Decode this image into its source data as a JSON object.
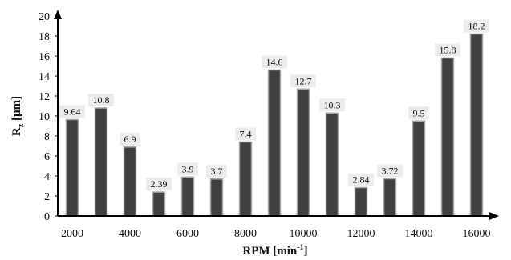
{
  "chart_data": {
    "type": "bar",
    "title": "",
    "xlabel_main": "RPM [min",
    "xlabel_sup": "-1",
    "xlabel_end": "]",
    "ylabel_main": "R",
    "ylabel_sub": "z",
    "ylabel_end": " [µm]",
    "ylim": [
      0,
      20
    ],
    "y_ticks": [
      "0",
      "2",
      "4",
      "6",
      "8",
      "10",
      "12",
      "14",
      "16",
      "18",
      "20"
    ],
    "x_tick_labels": [
      "2000",
      "4000",
      "6000",
      "8000",
      "10000",
      "12000",
      "14000",
      "16000"
    ],
    "categories": [
      2000,
      3000,
      4000,
      5000,
      6000,
      7000,
      8000,
      9000,
      10000,
      11000,
      12000,
      13000,
      14000,
      15000,
      16000
    ],
    "values": [
      9.64,
      10.8,
      6.9,
      2.39,
      3.9,
      3.7,
      7.4,
      14.6,
      12.7,
      10.3,
      2.84,
      3.72,
      9.5,
      15.8,
      18.2
    ],
    "data_labels": [
      "9.64",
      "10.8",
      "6.9",
      "2.39",
      "3.9",
      "3.7",
      "7.4",
      "14.6",
      "12.7",
      "10.3",
      "2.84",
      "3.72",
      "9.5",
      "15.8",
      "18.2"
    ],
    "grid": false,
    "legend": "none",
    "bar_color": "#404040",
    "bar_edge_color": "#a6a6a6",
    "axis_color": "#000000"
  }
}
